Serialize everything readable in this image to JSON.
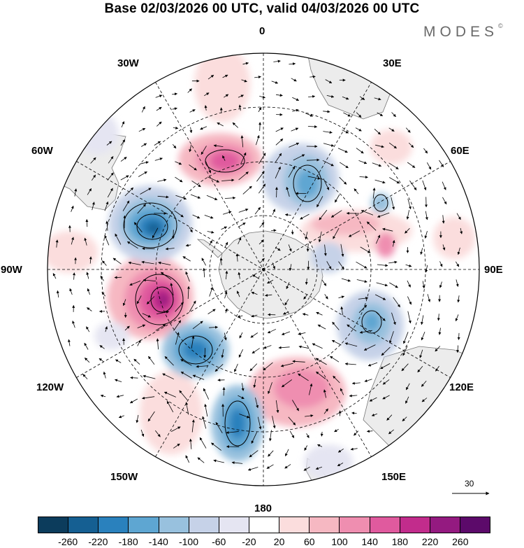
{
  "title": "Base 02/03/2026 00 UTC, valid 04/03/2026 00 UTC",
  "brand": {
    "name": "MODES",
    "mark": "©"
  },
  "longitude_labels": {
    "lon_0": "0",
    "lon_30e": "30E",
    "lon_60e": "60E",
    "lon_90e": "90E",
    "lon_120e": "120E",
    "lon_150e": "150E",
    "lon_180": "180",
    "lon_150w": "150W",
    "lon_120w": "120W",
    "lon_90w": "90W",
    "lon_60w": "60W",
    "lon_30w": "30W"
  },
  "reference_vector": {
    "value": "30"
  },
  "colorbar": {
    "colors": [
      "#0c3c5c",
      "#155f92",
      "#2a81bd",
      "#5ea6d2",
      "#98c1de",
      "#c6d2e8",
      "#e5e5f2",
      "#ffffff",
      "#fbdddd",
      "#f6b8c2",
      "#ef8eb0",
      "#e05a9e",
      "#c22c8c",
      "#941a80",
      "#5c0a6a"
    ],
    "ticks": [
      "-260",
      "-220",
      "-180",
      "-140",
      "-100",
      "-60",
      "-20",
      "20",
      "60",
      "100",
      "140",
      "180",
      "220",
      "260"
    ]
  }
}
